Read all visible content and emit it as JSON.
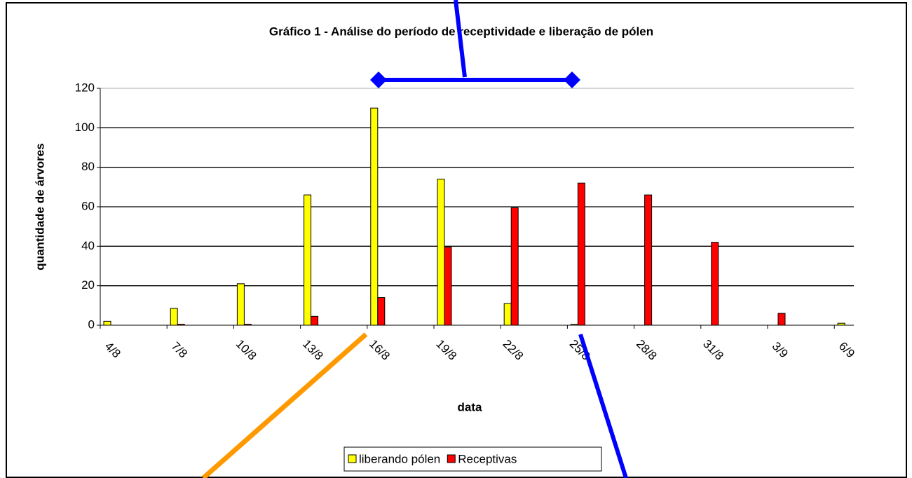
{
  "chart_data": {
    "type": "bar",
    "title": "Gráfico 1 - Análise do período de receptividade e liberação de pólen",
    "x_label": "data",
    "y_label": "quantidade de árvores",
    "categories": [
      "4/8",
      "7/8",
      "10/8",
      "13/8",
      "16/8",
      "19/8",
      "22/8",
      "25/8",
      "28/8",
      "31/8",
      "3/9",
      "6/9"
    ],
    "series": [
      {
        "name": "liberando pólen",
        "color": "#ffff00",
        "values": [
          2,
          8.5,
          21,
          66,
          110,
          74,
          11,
          0.5,
          0,
          0,
          0,
          1
        ]
      },
      {
        "name": "Receptivas",
        "color": "#ff0000",
        "values": [
          0,
          0.5,
          0.5,
          4.5,
          14,
          39.5,
          59.5,
          72,
          66,
          42,
          6,
          0
        ]
      }
    ],
    "ylim": [
      0,
      120
    ],
    "yticks": [
      0,
      20,
      40,
      60,
      80,
      100,
      120
    ],
    "grid": true,
    "legend": "bottom"
  }
}
